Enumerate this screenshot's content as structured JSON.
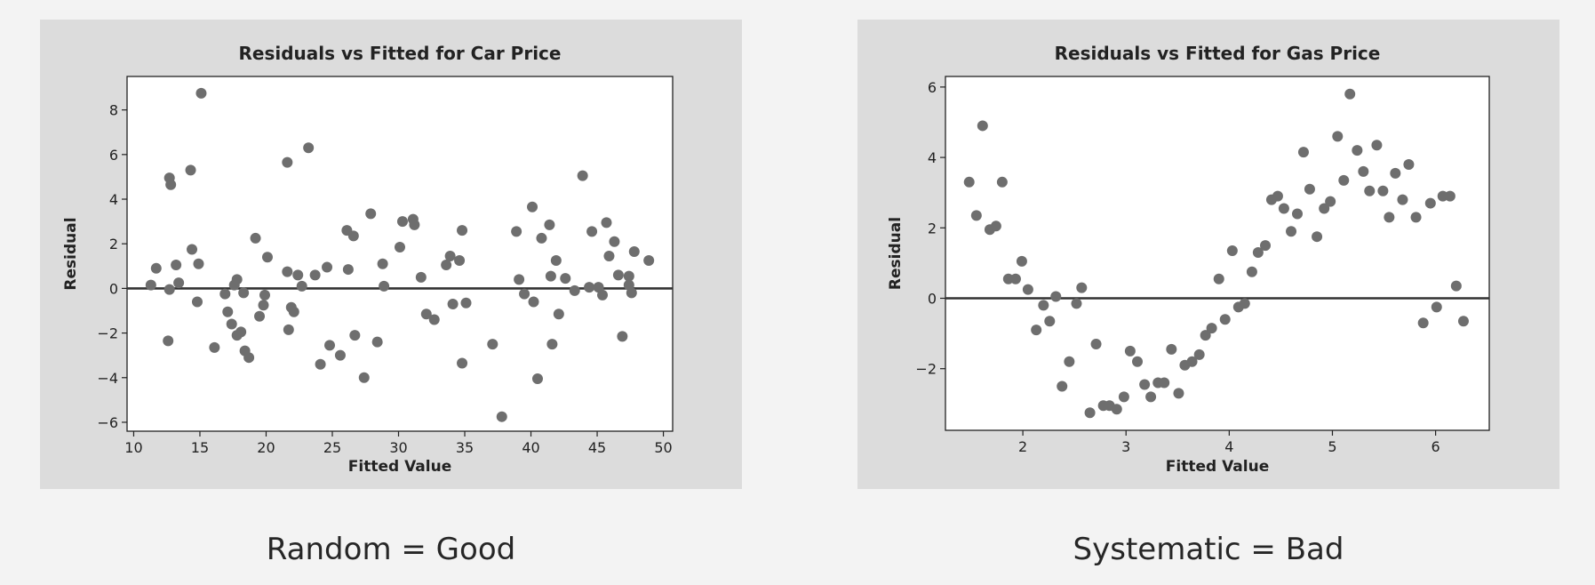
{
  "captions": {
    "left": "Random = Good",
    "right": "Systematic = Bad"
  },
  "chart_data": [
    {
      "type": "scatter",
      "title": "Residuals vs Fitted for Car Price",
      "xlabel": "Fitted Value",
      "ylabel": "Residual",
      "xlim": [
        9.5,
        50.7
      ],
      "ylim": [
        -6.4,
        9.5
      ],
      "xticks": [
        10,
        15,
        20,
        25,
        30,
        35,
        40,
        45,
        50
      ],
      "yticks": [
        -6,
        -4,
        -2,
        0,
        2,
        4,
        6,
        8
      ],
      "reference_line": 0,
      "grid": false,
      "marker_color": "#6e6e6e",
      "x": [
        11.3,
        11.7,
        12.7,
        12.8,
        12.7,
        12.6,
        13.2,
        13.4,
        14.3,
        14.4,
        14.8,
        14.9,
        15.1,
        16.1,
        16.9,
        17.1,
        17.4,
        17.6,
        17.8,
        17.8,
        18.1,
        18.3,
        18.4,
        18.7,
        19.2,
        19.5,
        19.8,
        19.9,
        20.1,
        21.6,
        21.6,
        21.7,
        21.9,
        22.1,
        22.4,
        22.7,
        23.2,
        23.7,
        24.1,
        24.6,
        24.8,
        25.6,
        26.1,
        26.2,
        26.6,
        26.7,
        27.4,
        27.9,
        28.4,
        28.8,
        28.9,
        30.1,
        30.3,
        31.1,
        31.2,
        31.7,
        32.1,
        32.7,
        33.6,
        33.9,
        34.1,
        34.6,
        34.8,
        34.8,
        35.1,
        37.1,
        37.8,
        38.9,
        39.1,
        39.5,
        40.1,
        40.2,
        40.5,
        40.8,
        41.4,
        41.5,
        41.6,
        41.9,
        42.1,
        42.6,
        43.3,
        43.9,
        44.4,
        44.6,
        45.1,
        45.4,
        45.7,
        45.9,
        46.3,
        46.6,
        46.9,
        47.4,
        47.4,
        47.6,
        47.8,
        48.9
      ],
      "y": [
        0.15,
        0.9,
        4.95,
        4.65,
        -0.05,
        -2.35,
        1.05,
        0.25,
        5.3,
        1.75,
        -0.6,
        1.1,
        8.75,
        -2.65,
        -0.25,
        -1.05,
        -1.6,
        0.15,
        0.4,
        -2.1,
        -1.95,
        -0.2,
        -2.8,
        -3.1,
        2.25,
        -1.25,
        -0.75,
        -0.3,
        1.4,
        5.65,
        0.75,
        -1.85,
        -0.85,
        -1.05,
        0.6,
        0.1,
        6.3,
        0.6,
        -3.4,
        0.95,
        -2.55,
        -3.0,
        2.6,
        0.85,
        2.35,
        -2.1,
        -4.0,
        3.35,
        -2.4,
        1.1,
        0.1,
        1.85,
        3.0,
        3.1,
        2.85,
        0.5,
        -1.15,
        -1.4,
        1.05,
        1.45,
        -0.7,
        1.25,
        2.6,
        -3.35,
        -0.65,
        -2.5,
        -5.75,
        2.55,
        0.4,
        -0.25,
        3.65,
        -0.6,
        -4.05,
        2.25,
        2.85,
        0.55,
        -2.5,
        1.25,
        -1.15,
        0.45,
        -0.1,
        5.05,
        0.05,
        2.55,
        0.05,
        -0.3,
        2.95,
        1.45,
        2.1,
        0.6,
        -2.15,
        0.15,
        0.55,
        -0.2,
        1.65,
        1.25
      ]
    },
    {
      "type": "scatter",
      "title": "Residuals vs Fitted for Gas Price",
      "xlabel": "Fitted Value",
      "ylabel": "Residual",
      "xlim": [
        1.25,
        6.52
      ],
      "ylim": [
        -3.75,
        6.3
      ],
      "xticks": [
        2,
        3,
        4,
        5,
        6
      ],
      "yticks": [
        -2,
        0,
        2,
        4,
        6
      ],
      "reference_line": 0,
      "grid": false,
      "marker_color": "#6e6e6e",
      "x": [
        1.48,
        1.55,
        1.61,
        1.68,
        1.74,
        1.8,
        1.86,
        1.93,
        1.99,
        2.05,
        2.13,
        2.2,
        2.26,
        2.32,
        2.38,
        2.45,
        2.52,
        2.57,
        2.65,
        2.71,
        2.78,
        2.84,
        2.91,
        2.98,
        3.04,
        3.11,
        3.18,
        3.24,
        3.31,
        3.37,
        3.44,
        3.51,
        3.57,
        3.64,
        3.71,
        3.77,
        3.83,
        3.9,
        3.96,
        4.03,
        4.09,
        4.15,
        4.22,
        4.28,
        4.35,
        4.41,
        4.47,
        4.53,
        4.6,
        4.66,
        4.72,
        4.78,
        4.85,
        4.92,
        4.98,
        5.05,
        5.11,
        5.17,
        5.24,
        5.3,
        5.36,
        5.43,
        5.49,
        5.55,
        5.61,
        5.68,
        5.74,
        5.81,
        5.88,
        5.95,
        6.01,
        6.07,
        6.14,
        6.2,
        6.27
      ],
      "y": [
        3.3,
        2.35,
        4.9,
        1.95,
        2.05,
        3.3,
        0.55,
        0.55,
        1.05,
        0.25,
        -0.9,
        -0.2,
        -0.65,
        0.05,
        -2.5,
        -1.8,
        -0.15,
        0.3,
        -3.25,
        -1.3,
        -3.05,
        -3.05,
        -3.15,
        -2.8,
        -1.5,
        -1.8,
        -2.45,
        -2.8,
        -2.4,
        -2.4,
        -1.45,
        -2.7,
        -1.9,
        -1.8,
        -1.6,
        -1.05,
        -0.85,
        0.55,
        -0.6,
        1.35,
        -0.25,
        -0.15,
        0.75,
        1.3,
        1.5,
        2.8,
        2.9,
        2.55,
        1.9,
        2.4,
        4.15,
        3.1,
        1.75,
        2.55,
        2.75,
        4.6,
        3.35,
        5.8,
        4.2,
        3.6,
        3.05,
        4.35,
        3.05,
        2.3,
        3.55,
        2.8,
        3.8,
        2.3,
        -0.7,
        2.7,
        -0.25,
        2.9,
        2.9,
        0.35,
        -0.65
      ]
    }
  ]
}
